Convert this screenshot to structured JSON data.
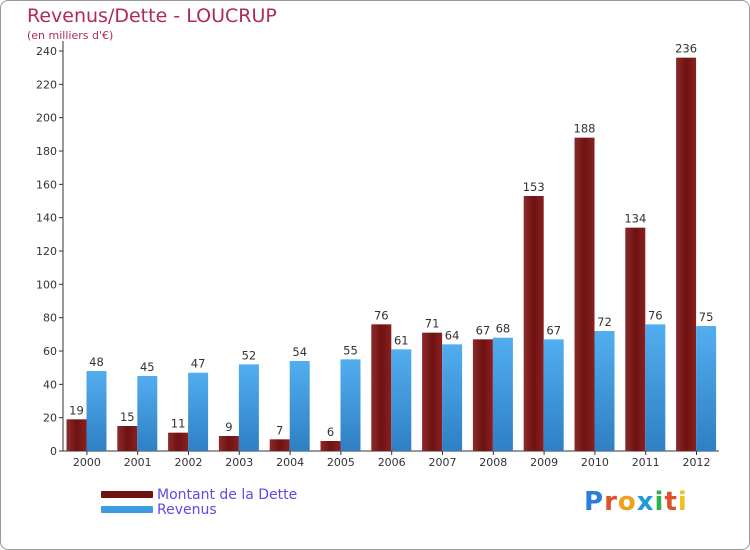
{
  "header": {
    "title": "Revenus/Dette - LOUCRUP",
    "subtitle": "(en milliers d'€)"
  },
  "brand": {
    "logo_text": "Proxiti",
    "letter_colors": [
      "#2a7fd9",
      "#e0502a",
      "#f0a020",
      "#1f9ad6",
      "#2bb24c",
      "#e0502a",
      "#f0c020"
    ]
  },
  "chart_data": {
    "type": "bar",
    "title": "Revenus/Dette - LOUCRUP",
    "ylabel": "(en milliers d'€)",
    "xlabel": "",
    "categories": [
      "2000",
      "2001",
      "2002",
      "2003",
      "2004",
      "2005",
      "2006",
      "2007",
      "2008",
      "2009",
      "2010",
      "2011",
      "2012"
    ],
    "ylim": [
      0,
      250
    ],
    "yticks": [
      0,
      20,
      40,
      60,
      80,
      100,
      120,
      140,
      160,
      180,
      200,
      220,
      240
    ],
    "grid": false,
    "legend_position": "bottom-left",
    "series": [
      {
        "name": "Montant de la Dette",
        "color": "#7a1c1c",
        "values": [
          19,
          15,
          11,
          9,
          7,
          6,
          76,
          71,
          67,
          153,
          188,
          134,
          236
        ]
      },
      {
        "name": "Revenus",
        "color": "#3d9ce0",
        "values": [
          48,
          45,
          47,
          52,
          54,
          55,
          61,
          64,
          68,
          67,
          72,
          76,
          75
        ]
      }
    ]
  }
}
